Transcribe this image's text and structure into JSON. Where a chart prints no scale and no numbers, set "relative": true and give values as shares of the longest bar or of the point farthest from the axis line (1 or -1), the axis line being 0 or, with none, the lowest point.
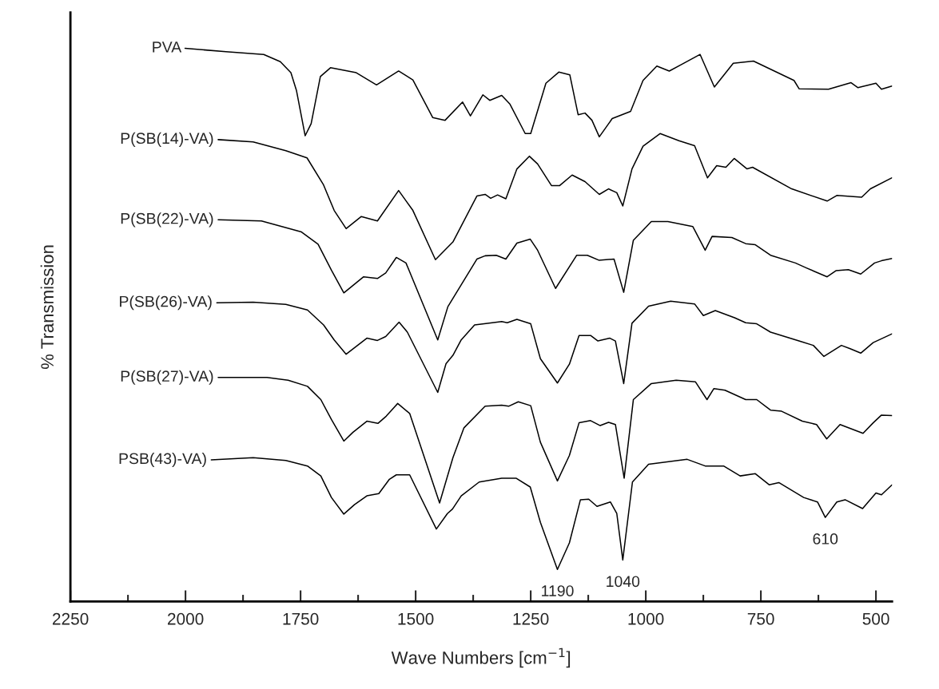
{
  "chart_data": {
    "type": "line",
    "relative": true,
    "xlabel": "Wave Numbers [cm$^{−1}$]",
    "ylabel": "% Transmission",
    "xlim": [
      2250,
      465
    ],
    "xticks": [
      2250,
      {
        "value": 2125,
        "label": null
      },
      2000,
      {
        "value": 1875,
        "label": null
      },
      1750,
      {
        "value": 1625,
        "label": null
      },
      1500,
      {
        "value": 1375,
        "label": null
      },
      1250,
      {
        "value": 1125,
        "label": null
      },
      1000,
      {
        "value": 875,
        "label": null
      },
      750,
      {
        "value": 625,
        "label": null
      },
      500
    ],
    "grid": false,
    "legend": false,
    "marker": "none",
    "line_style": "solid",
    "series": [
      {
        "name": "PVA",
        "color": "#000000",
        "x": [
          2001,
          1912,
          1830,
          1794,
          1771,
          1759,
          1740,
          1727,
          1707,
          1685,
          1629,
          1585,
          1537,
          1506,
          1463,
          1436,
          1398,
          1381,
          1354,
          1339,
          1313,
          1295,
          1262,
          1250,
          1217,
          1189,
          1165,
          1147,
          1132,
          1117,
          1101,
          1073,
          1033,
          1006,
          976,
          949,
          922,
          882,
          851,
          810,
          766,
          678,
          667,
          603,
          554,
          539,
          500,
          488,
          465
        ],
        "values": [
          1.0,
          0.994,
          0.989,
          0.976,
          0.956,
          0.924,
          0.842,
          0.864,
          0.949,
          0.965,
          0.956,
          0.934,
          0.959,
          0.943,
          0.875,
          0.87,
          0.903,
          0.878,
          0.916,
          0.906,
          0.915,
          0.899,
          0.846,
          0.846,
          0.937,
          0.957,
          0.952,
          0.88,
          0.883,
          0.87,
          0.84,
          0.873,
          0.886,
          0.942,
          0.968,
          0.959,
          0.971,
          0.989,
          0.93,
          0.973,
          0.977,
          0.942,
          0.927,
          0.926,
          0.938,
          0.929,
          0.937,
          0.926,
          0.932
        ]
      },
      {
        "name": "P(SB(14)-VA)",
        "color": "#000000",
        "x": [
          1929,
          1853,
          1782,
          1736,
          1700,
          1677,
          1651,
          1618,
          1583,
          1537,
          1506,
          1457,
          1419,
          1367,
          1349,
          1337,
          1322,
          1304,
          1280,
          1253,
          1235,
          1205,
          1187,
          1160,
          1132,
          1101,
          1081,
          1063,
          1050,
          1030,
          1006,
          969,
          928,
          894,
          866,
          846,
          826,
          808,
          780,
          768,
          683,
          606,
          585,
          531,
          512,
          465
        ],
        "values": [
          0.835,
          0.831,
          0.815,
          0.802,
          0.753,
          0.707,
          0.674,
          0.696,
          0.688,
          0.743,
          0.707,
          0.618,
          0.65,
          0.733,
          0.736,
          0.729,
          0.735,
          0.728,
          0.782,
          0.805,
          0.791,
          0.752,
          0.752,
          0.771,
          0.759,
          0.736,
          0.746,
          0.739,
          0.715,
          0.782,
          0.823,
          0.846,
          0.833,
          0.824,
          0.766,
          0.788,
          0.785,
          0.801,
          0.782,
          0.785,
          0.746,
          0.724,
          0.734,
          0.731,
          0.746,
          0.766
        ]
      },
      {
        "name": "P(SB(22)-VA)",
        "color": "#000000",
        "x": [
          1929,
          1835,
          1748,
          1712,
          1683,
          1656,
          1613,
          1583,
          1565,
          1542,
          1521,
          1452,
          1430,
          1367,
          1349,
          1325,
          1304,
          1280,
          1251,
          1235,
          1196,
          1150,
          1127,
          1102,
          1069,
          1048,
          1027,
          988,
          952,
          898,
          871,
          856,
          813,
          783,
          762,
          729,
          675,
          651,
          606,
          587,
          560,
          533,
          503,
          488,
          465
        ],
        "values": [
          0.69,
          0.688,
          0.668,
          0.646,
          0.599,
          0.558,
          0.587,
          0.584,
          0.594,
          0.622,
          0.612,
          0.473,
          0.533,
          0.619,
          0.625,
          0.626,
          0.619,
          0.648,
          0.655,
          0.635,
          0.566,
          0.626,
          0.626,
          0.617,
          0.619,
          0.559,
          0.653,
          0.687,
          0.687,
          0.678,
          0.635,
          0.66,
          0.658,
          0.647,
          0.645,
          0.626,
          0.612,
          0.603,
          0.587,
          0.598,
          0.6,
          0.592,
          0.612,
          0.616,
          0.62
        ]
      },
      {
        "name": "P(SB(26)-VA)",
        "color": "#000000",
        "x": [
          1932,
          1853,
          1782,
          1735,
          1700,
          1677,
          1651,
          1606,
          1583,
          1565,
          1536,
          1518,
          1452,
          1434,
          1419,
          1401,
          1372,
          1344,
          1313,
          1301,
          1280,
          1250,
          1229,
          1192,
          1166,
          1145,
          1120,
          1104,
          1078,
          1066,
          1048,
          1030,
          994,
          946,
          894,
          875,
          849,
          807,
          783,
          759,
          729,
          663,
          636,
          613,
          575,
          556,
          533,
          506,
          465
        ],
        "values": [
          0.54,
          0.541,
          0.537,
          0.527,
          0.5,
          0.473,
          0.447,
          0.476,
          0.472,
          0.479,
          0.505,
          0.487,
          0.378,
          0.43,
          0.445,
          0.473,
          0.5,
          0.503,
          0.506,
          0.504,
          0.51,
          0.502,
          0.439,
          0.395,
          0.429,
          0.481,
          0.481,
          0.471,
          0.476,
          0.471,
          0.394,
          0.503,
          0.534,
          0.543,
          0.538,
          0.517,
          0.526,
          0.513,
          0.504,
          0.502,
          0.487,
          0.47,
          0.463,
          0.443,
          0.463,
          0.457,
          0.449,
          0.468,
          0.484
        ]
      },
      {
        "name": "P(SB(27)-VA)",
        "color": "#000000",
        "x": [
          1929,
          1823,
          1777,
          1735,
          1706,
          1683,
          1656,
          1636,
          1606,
          1582,
          1564,
          1539,
          1513,
          1448,
          1419,
          1395,
          1349,
          1313,
          1298,
          1277,
          1250,
          1229,
          1192,
          1166,
          1145,
          1120,
          1099,
          1081,
          1066,
          1047,
          1027,
          988,
          934,
          892,
          867,
          852,
          828,
          783,
          759,
          729,
          705,
          660,
          629,
          607,
          578,
          528,
          506,
          488,
          465
        ],
        "values": [
          0.405,
          0.405,
          0.4,
          0.389,
          0.365,
          0.329,
          0.29,
          0.306,
          0.326,
          0.322,
          0.335,
          0.358,
          0.34,
          0.178,
          0.26,
          0.314,
          0.353,
          0.355,
          0.353,
          0.361,
          0.354,
          0.288,
          0.218,
          0.264,
          0.323,
          0.327,
          0.318,
          0.324,
          0.32,
          0.223,
          0.365,
          0.394,
          0.4,
          0.397,
          0.365,
          0.385,
          0.382,
          0.365,
          0.365,
          0.346,
          0.344,
          0.326,
          0.32,
          0.294,
          0.32,
          0.304,
          0.323,
          0.337,
          0.336
        ]
      },
      {
        "name": "PSB(43)-VA)",
        "color": "#000000",
        "x": [
          1944,
          1853,
          1782,
          1735,
          1706,
          1683,
          1656,
          1633,
          1606,
          1580,
          1557,
          1542,
          1513,
          1455,
          1431,
          1420,
          1401,
          1362,
          1313,
          1282,
          1251,
          1229,
          1192,
          1166,
          1142,
          1124,
          1106,
          1077,
          1063,
          1050,
          1029,
          994,
          910,
          871,
          831,
          795,
          762,
          732,
          711,
          657,
          627,
          610,
          585,
          567,
          529,
          500,
          488,
          465
        ],
        "values": [
          0.256,
          0.26,
          0.255,
          0.245,
          0.227,
          0.188,
          0.158,
          0.175,
          0.191,
          0.195,
          0.221,
          0.229,
          0.229,
          0.131,
          0.159,
          0.167,
          0.191,
          0.216,
          0.223,
          0.223,
          0.207,
          0.143,
          0.058,
          0.106,
          0.184,
          0.185,
          0.172,
          0.18,
          0.159,
          0.075,
          0.216,
          0.248,
          0.257,
          0.245,
          0.245,
          0.227,
          0.231,
          0.211,
          0.215,
          0.188,
          0.18,
          0.152,
          0.18,
          0.184,
          0.168,
          0.196,
          0.193,
          0.211
        ]
      }
    ],
    "annotations": [
      {
        "text": "1190",
        "x": 1192,
        "y": 0.058
      },
      {
        "text": "1040",
        "x": 1050,
        "y": 0.075
      },
      {
        "text": "610",
        "x": 610,
        "y": 0.152
      }
    ]
  }
}
